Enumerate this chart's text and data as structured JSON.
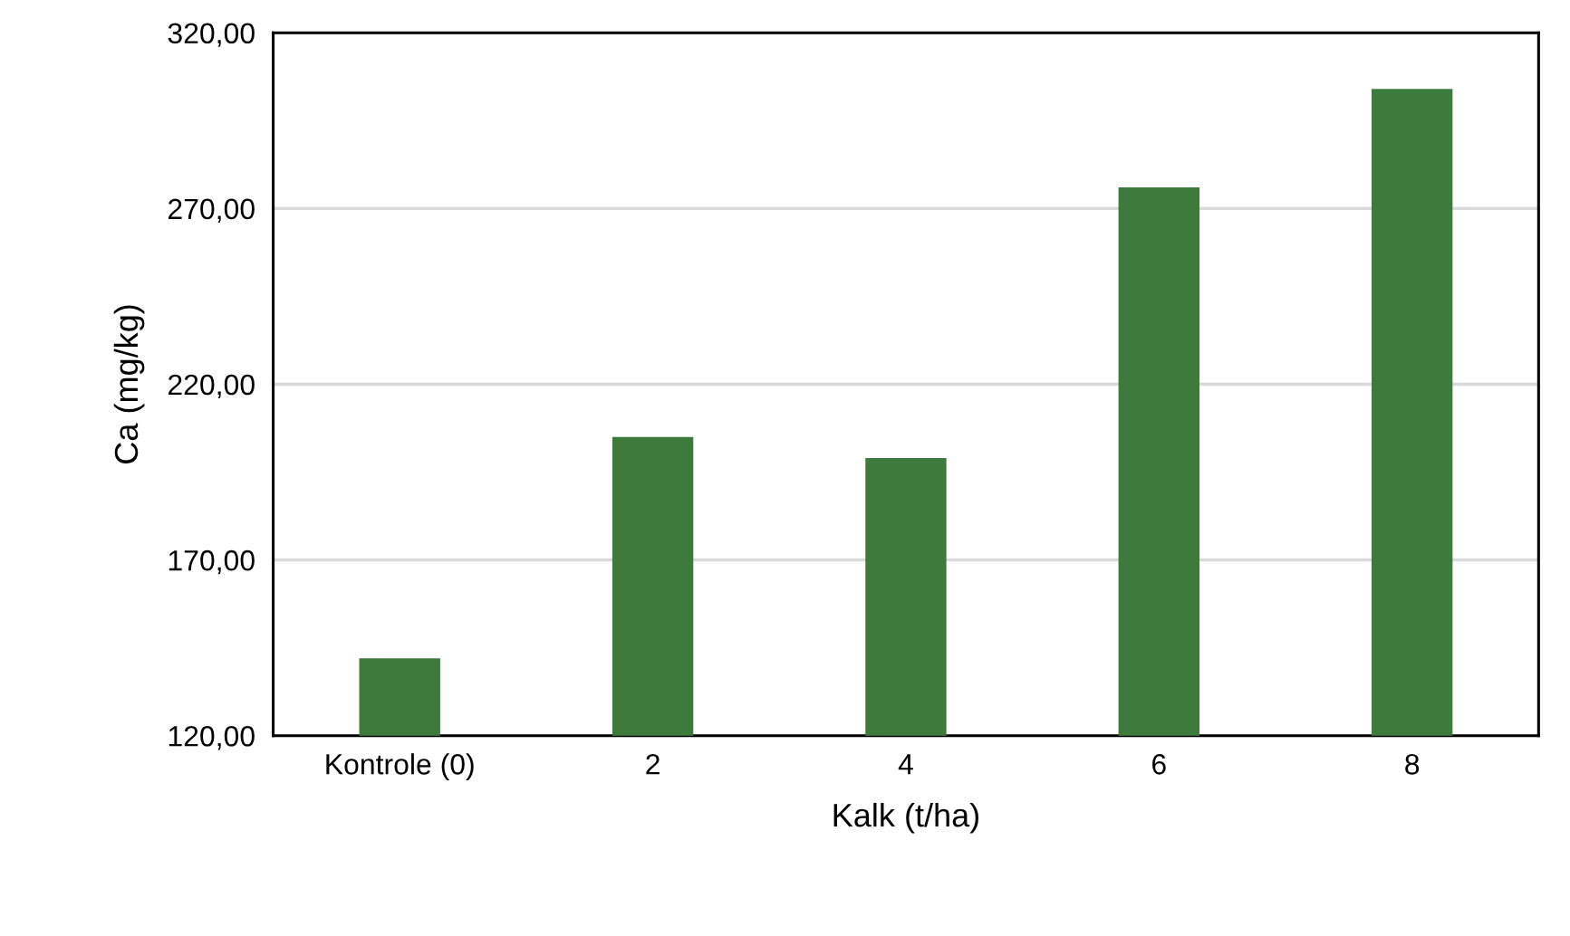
{
  "chart_data": {
    "type": "bar",
    "xlabel": "Kalk (t/ha)",
    "ylabel": "Ca (mg/kg)",
    "categories": [
      "Kontrole (0)",
      "2",
      "4",
      "6",
      "8"
    ],
    "values": [
      142,
      205,
      199,
      276,
      304
    ],
    "color": "#3d7b3d",
    "ylim": [
      120,
      320
    ],
    "yticks": [
      {
        "value": 120,
        "label": "120,00"
      },
      {
        "value": 170,
        "label": "170,00"
      },
      {
        "value": 220,
        "label": "220,00"
      },
      {
        "value": 270,
        "label": "270,00"
      },
      {
        "value": 320,
        "label": "320,00"
      }
    ],
    "grid": "y"
  }
}
